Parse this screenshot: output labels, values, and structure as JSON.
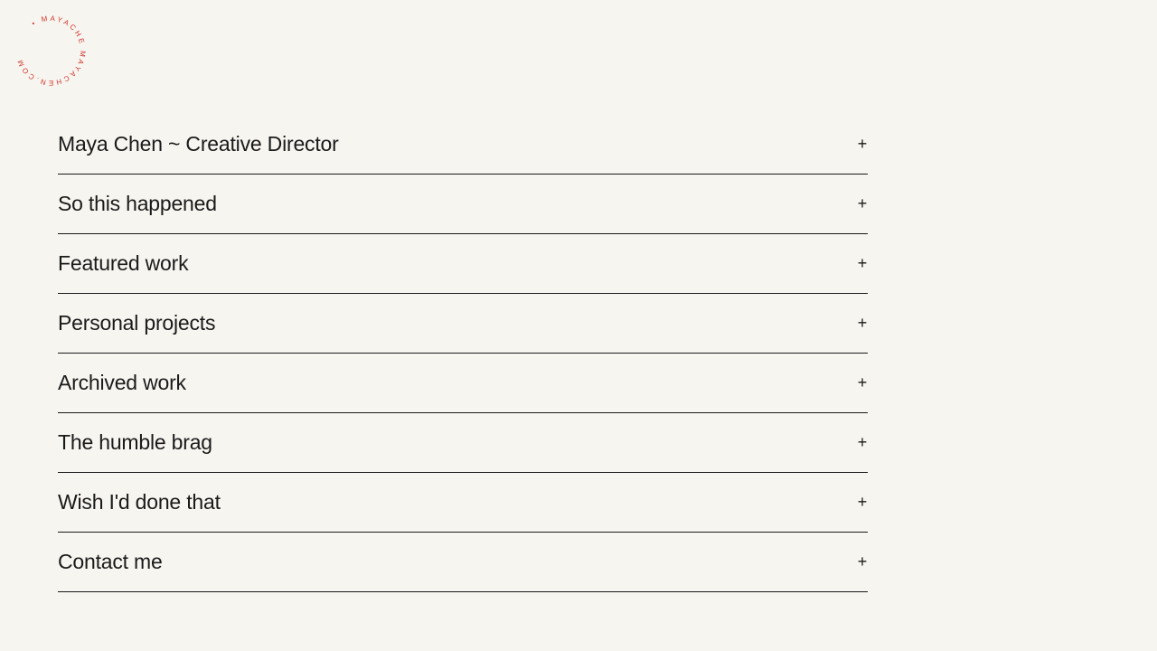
{
  "logo": {
    "text": "• MAYACHE MAYACHEN.COM",
    "color": "#d0342c"
  },
  "sections": [
    {
      "label": "Maya Chen ~ Creative Director",
      "icon": "plus-icon",
      "toggle": "+"
    },
    {
      "label": "So this happened",
      "icon": "plus-icon",
      "toggle": "+"
    },
    {
      "label": "Featured work",
      "icon": "plus-icon",
      "toggle": "+"
    },
    {
      "label": "Personal projects",
      "icon": "plus-icon",
      "toggle": "+"
    },
    {
      "label": "Archived work",
      "icon": "plus-icon",
      "toggle": "+"
    },
    {
      "label": "The humble brag",
      "icon": "plus-icon",
      "toggle": "+"
    },
    {
      "label": "Wish I'd done that",
      "icon": "plus-icon",
      "toggle": "+"
    },
    {
      "label": "Contact me",
      "icon": "plus-icon",
      "toggle": "+"
    }
  ]
}
